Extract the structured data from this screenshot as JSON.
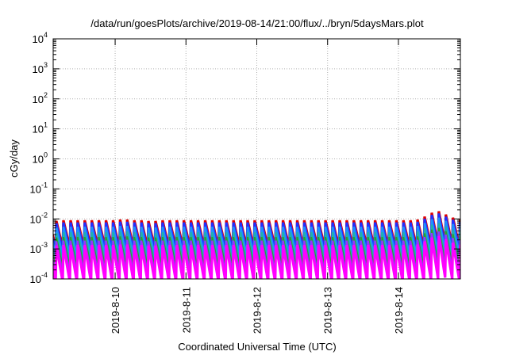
{
  "chart_data": {
    "type": "line",
    "title": "/data/run/goesPlots/archive/2019-08-14/21:00/flux/../bryn/5daysMars.plot",
    "xlabel": "Coordinated Universal Time (UTC)",
    "ylabel": "cGy/day",
    "xlim": [
      "2019-08-09 03:00",
      "2019-08-14 21:00"
    ],
    "ylim": [
      0.0001,
      10000
    ],
    "yscale": "log",
    "grid": true,
    "legend": "none",
    "x_ticks": [
      "2019-8-10",
      "2019-8-11",
      "2019-8-12",
      "2019-8-13",
      "2019-8-14"
    ],
    "y_ticks": [
      {
        "base": "10",
        "exp": "-4",
        "value": 0.0001
      },
      {
        "base": "10",
        "exp": "-3",
        "value": 0.001
      },
      {
        "base": "10",
        "exp": "-2",
        "value": 0.01
      },
      {
        "base": "10",
        "exp": "-1",
        "value": 0.1
      },
      {
        "base": "10",
        "exp": "0",
        "value": 1
      },
      {
        "base": "10",
        "exp": "1",
        "value": 10
      },
      {
        "base": "10",
        "exp": "2",
        "value": 100
      },
      {
        "base": "10",
        "exp": "3",
        "value": 1000
      },
      {
        "base": "10",
        "exp": "4",
        "value": 10000
      }
    ],
    "sawtooth_period_hours": 2.4,
    "series": [
      {
        "color": "#e00000",
        "peak": [
          0.0085,
          0.0085,
          0.009,
          0.009,
          0.009,
          0.009,
          0.009,
          0.009,
          0.009,
          0.009,
          0.0095,
          0.0095,
          0.009,
          0.009,
          0.0085,
          0.0085,
          0.009,
          0.009,
          0.009,
          0.009,
          0.009,
          0.009,
          0.009,
          0.009,
          0.009,
          0.009,
          0.009,
          0.009,
          0.009,
          0.009,
          0.009,
          0.009,
          0.009,
          0.009,
          0.009,
          0.009,
          0.009,
          0.009,
          0.009,
          0.009,
          0.009,
          0.009,
          0.009,
          0.009,
          0.009,
          0.009,
          0.009,
          0.009,
          0.009,
          0.009,
          0.009,
          0.009,
          0.0095,
          0.012,
          0.016,
          0.018,
          0.014,
          0.011,
          0.0095,
          0.009
        ],
        "trough": [
          0.0011,
          0.0011,
          0.0011,
          0.0011,
          0.0011,
          0.0011,
          0.0011,
          0.0011,
          0.0011,
          0.0011,
          0.0011,
          0.0011,
          0.0011,
          0.0011,
          0.0011,
          0.0011,
          0.0011,
          0.0011,
          0.0011,
          0.0011,
          0.0011,
          0.0011,
          0.0011,
          0.0011,
          0.0011,
          0.0011,
          0.0011,
          0.0011,
          0.0011,
          0.0011,
          0.0011,
          0.0011,
          0.0011,
          0.0011,
          0.0011,
          0.0011,
          0.0011,
          0.0011,
          0.0011,
          0.0011,
          0.0011,
          0.0011,
          0.0011,
          0.0011,
          0.0011,
          0.0011,
          0.0011,
          0.0011,
          0.0011,
          0.0011,
          0.0011,
          0.0011,
          0.0011,
          0.0012,
          0.0014,
          0.0015,
          0.0013,
          0.0012,
          0.0011,
          0.0011
        ]
      },
      {
        "color": "#2030ff",
        "peak": [
          0.0072,
          0.0072,
          0.0076,
          0.0076,
          0.0076,
          0.0076,
          0.0076,
          0.0076,
          0.0076,
          0.0076,
          0.008,
          0.008,
          0.0076,
          0.0076,
          0.0072,
          0.0072,
          0.0076,
          0.0076,
          0.0076,
          0.0076,
          0.0076,
          0.0076,
          0.0076,
          0.0076,
          0.0076,
          0.0076,
          0.0076,
          0.0076,
          0.0076,
          0.0076,
          0.0076,
          0.0076,
          0.0076,
          0.0076,
          0.0076,
          0.0076,
          0.0076,
          0.0076,
          0.0076,
          0.0076,
          0.0076,
          0.0076,
          0.0076,
          0.0076,
          0.0076,
          0.0076,
          0.0076,
          0.0076,
          0.0076,
          0.0076,
          0.0076,
          0.0076,
          0.008,
          0.0101,
          0.0135,
          0.0152,
          0.0118,
          0.0093,
          0.008,
          0.0076
        ],
        "trough": [
          0.00085,
          0.00085,
          0.00085,
          0.00085,
          0.00085,
          0.00085,
          0.00085,
          0.00085,
          0.00085,
          0.00085,
          0.00085,
          0.00085,
          0.00085,
          0.00085,
          0.00085,
          0.00085,
          0.00085,
          0.00085,
          0.00085,
          0.00085,
          0.00085,
          0.00085,
          0.00085,
          0.00085,
          0.00085,
          0.00085,
          0.00085,
          0.00085,
          0.00085,
          0.00085,
          0.00085,
          0.00085,
          0.00085,
          0.00085,
          0.00085,
          0.00085,
          0.00085,
          0.00085,
          0.00085,
          0.00085,
          0.00085,
          0.00085,
          0.00085,
          0.00085,
          0.00085,
          0.00085,
          0.00085,
          0.00085,
          0.00085,
          0.00085,
          0.00085,
          0.00085,
          0.00085,
          0.00092,
          0.00108,
          0.00116,
          0.001,
          0.00092,
          0.00085,
          0.00085
        ]
      },
      {
        "color": "#1e90ff",
        "peak": [
          0.0052,
          0.0052,
          0.0055,
          0.0055,
          0.0055,
          0.0055,
          0.0055,
          0.0055,
          0.0055,
          0.0055,
          0.0058,
          0.0058,
          0.0055,
          0.0055,
          0.0052,
          0.0052,
          0.0055,
          0.0055,
          0.0055,
          0.0055,
          0.0055,
          0.0055,
          0.0055,
          0.0055,
          0.0055,
          0.0055,
          0.0055,
          0.0055,
          0.0055,
          0.0055,
          0.0055,
          0.0055,
          0.0055,
          0.0055,
          0.0055,
          0.0055,
          0.0055,
          0.0055,
          0.0055,
          0.0055,
          0.0055,
          0.0055,
          0.0055,
          0.0055,
          0.0055,
          0.0055,
          0.0055,
          0.0055,
          0.0055,
          0.0055,
          0.0055,
          0.0055,
          0.0058,
          0.0073,
          0.0098,
          0.011,
          0.0086,
          0.0067,
          0.0058,
          0.0055
        ],
        "trough": [
          0.0006,
          0.0006,
          0.0006,
          0.0006,
          0.0006,
          0.0006,
          0.0006,
          0.0006,
          0.0006,
          0.0006,
          0.0006,
          0.0006,
          0.0006,
          0.0006,
          0.0006,
          0.0006,
          0.0006,
          0.0006,
          0.0006,
          0.0006,
          0.0006,
          0.0006,
          0.0006,
          0.0006,
          0.0006,
          0.0006,
          0.0006,
          0.0006,
          0.0006,
          0.0006,
          0.0006,
          0.0006,
          0.0006,
          0.0006,
          0.0006,
          0.0006,
          0.0006,
          0.0006,
          0.0006,
          0.0006,
          0.0006,
          0.0006,
          0.0006,
          0.0006,
          0.0006,
          0.0006,
          0.0006,
          0.0006,
          0.0006,
          0.0006,
          0.0006,
          0.0006,
          0.0006,
          0.00065,
          0.00076,
          0.00082,
          0.00071,
          0.00065,
          0.0006,
          0.0006
        ]
      },
      {
        "color": "#20b2aa",
        "peak": [
          0.0034,
          0.0034,
          0.0036,
          0.0036,
          0.0036,
          0.0036,
          0.0036,
          0.0036,
          0.0036,
          0.0036,
          0.0038,
          0.0038,
          0.0036,
          0.0036,
          0.0034,
          0.0034,
          0.0036,
          0.0036,
          0.0036,
          0.0036,
          0.0036,
          0.0036,
          0.0036,
          0.0036,
          0.0036,
          0.0036,
          0.0036,
          0.0036,
          0.0036,
          0.0036,
          0.0036,
          0.0036,
          0.0036,
          0.0036,
          0.0036,
          0.0036,
          0.0036,
          0.0036,
          0.0036,
          0.0036,
          0.0036,
          0.0036,
          0.0036,
          0.0036,
          0.0036,
          0.0036,
          0.0036,
          0.0036,
          0.0036,
          0.0036,
          0.0036,
          0.0036,
          0.0038,
          0.0048,
          0.0064,
          0.0072,
          0.0056,
          0.0044,
          0.0038,
          0.0036
        ],
        "trough": [
          0.00035,
          0.00035,
          0.00035,
          0.00035,
          0.00035,
          0.00035,
          0.00035,
          0.00035,
          0.00035,
          0.00035,
          0.00035,
          0.00035,
          0.00035,
          0.00035,
          0.00035,
          0.00035,
          0.00035,
          0.00035,
          0.00035,
          0.00035,
          0.00035,
          0.00035,
          0.00035,
          0.00035,
          0.00035,
          0.00035,
          0.00035,
          0.00035,
          0.00035,
          0.00035,
          0.00035,
          0.00035,
          0.00035,
          0.00035,
          0.00035,
          0.00035,
          0.00035,
          0.00035,
          0.00035,
          0.00035,
          0.00035,
          0.00035,
          0.00035,
          0.00035,
          0.00035,
          0.00035,
          0.00035,
          0.00035,
          0.00035,
          0.00035,
          0.00035,
          0.00035,
          0.00035,
          0.00038,
          0.00044,
          0.00048,
          0.00041,
          0.00038,
          0.00035,
          0.00035
        ]
      },
      {
        "color": "#2ca02c",
        "peak": [
          0.0024,
          0.0024,
          0.0025,
          0.0025,
          0.0025,
          0.0025,
          0.0025,
          0.0025,
          0.0025,
          0.0025,
          0.0026,
          0.0026,
          0.0025,
          0.0025,
          0.0024,
          0.0024,
          0.0025,
          0.0025,
          0.0025,
          0.0025,
          0.0025,
          0.0025,
          0.0025,
          0.0025,
          0.0025,
          0.0025,
          0.0025,
          0.0025,
          0.0025,
          0.0025,
          0.0025,
          0.0025,
          0.0025,
          0.0025,
          0.0025,
          0.0025,
          0.0025,
          0.0025,
          0.0025,
          0.0025,
          0.0025,
          0.0025,
          0.0025,
          0.0025,
          0.0025,
          0.0025,
          0.0025,
          0.0025,
          0.0025,
          0.0025,
          0.0025,
          0.0025,
          0.0026,
          0.0033,
          0.0044,
          0.005,
          0.0039,
          0.0031,
          0.0026,
          0.0025
        ],
        "trough": [
          0.00024,
          0.00024,
          0.00024,
          0.00024,
          0.00024,
          0.00024,
          0.00024,
          0.00024,
          0.00024,
          0.00024,
          0.00024,
          0.00024,
          0.00024,
          0.00024,
          0.00024,
          0.00024,
          0.00024,
          0.00024,
          0.00024,
          0.00024,
          0.00024,
          0.00024,
          0.00024,
          0.00024,
          0.00024,
          0.00024,
          0.00024,
          0.00024,
          0.00024,
          0.00024,
          0.00024,
          0.00024,
          0.00024,
          0.00024,
          0.00024,
          0.00024,
          0.00024,
          0.00024,
          0.00024,
          0.00024,
          0.00024,
          0.00024,
          0.00024,
          0.00024,
          0.00024,
          0.00024,
          0.00024,
          0.00024,
          0.00024,
          0.00024,
          0.00024,
          0.00024,
          0.00024,
          0.00026,
          0.0003,
          0.00033,
          0.00028,
          0.00026,
          0.00024,
          0.00024
        ]
      },
      {
        "color": "#9b30ff",
        "peak": [
          0.0018,
          0.0018,
          0.0019,
          0.0019,
          0.0019,
          0.0019,
          0.0019,
          0.0019,
          0.0019,
          0.0019,
          0.002,
          0.002,
          0.0019,
          0.0019,
          0.0018,
          0.0018,
          0.0019,
          0.0019,
          0.0019,
          0.0019,
          0.0019,
          0.0019,
          0.0019,
          0.0019,
          0.0019,
          0.0019,
          0.0019,
          0.0019,
          0.0019,
          0.0019,
          0.0019,
          0.0019,
          0.0019,
          0.0019,
          0.0019,
          0.0019,
          0.0019,
          0.0019,
          0.0019,
          0.0019,
          0.0019,
          0.0019,
          0.0019,
          0.0019,
          0.0019,
          0.0019,
          0.0019,
          0.0019,
          0.0019,
          0.0019,
          0.0019,
          0.0019,
          0.002,
          0.0025,
          0.0034,
          0.0038,
          0.003,
          0.0023,
          0.002,
          0.0019
        ],
        "trough": [
          0.00016,
          0.00016,
          0.00016,
          0.00016,
          0.00016,
          0.00016,
          0.00016,
          0.00016,
          0.00016,
          0.00016,
          0.00016,
          0.00016,
          0.00016,
          0.00016,
          0.00016,
          0.00016,
          0.00016,
          0.00016,
          0.00016,
          0.00016,
          0.00016,
          0.00016,
          0.00016,
          0.00016,
          0.00016,
          0.00016,
          0.00016,
          0.00016,
          0.00016,
          0.00016,
          0.00016,
          0.00016,
          0.00016,
          0.00016,
          0.00016,
          0.00016,
          0.00016,
          0.00016,
          0.00016,
          0.00016,
          0.00016,
          0.00016,
          0.00016,
          0.00016,
          0.00016,
          0.00016,
          0.00016,
          0.00016,
          0.00016,
          0.00016,
          0.00016,
          0.00016,
          0.00016,
          0.00017,
          0.0002,
          0.00022,
          0.00019,
          0.00017,
          0.00016,
          0.00016
        ]
      },
      {
        "color": "#ff00ff",
        "peak": [
          0.0013,
          0.0013,
          0.00135,
          0.00135,
          0.00135,
          0.00135,
          0.00135,
          0.00135,
          0.00135,
          0.00135,
          0.0014,
          0.0014,
          0.00135,
          0.00135,
          0.0013,
          0.0013,
          0.00135,
          0.00135,
          0.00135,
          0.00135,
          0.00135,
          0.00135,
          0.00135,
          0.00135,
          0.00135,
          0.00135,
          0.00135,
          0.00135,
          0.00135,
          0.00135,
          0.00135,
          0.00135,
          0.00135,
          0.00135,
          0.00135,
          0.00135,
          0.00135,
          0.00135,
          0.00135,
          0.00135,
          0.00135,
          0.00135,
          0.00135,
          0.00135,
          0.00135,
          0.00135,
          0.00135,
          0.00135,
          0.00135,
          0.00135,
          0.00135,
          0.00135,
          0.0014,
          0.0018,
          0.0024,
          0.0027,
          0.0021,
          0.0016,
          0.0014,
          0.00135
        ],
        "trough": [
          8e-05,
          8e-05,
          8e-05,
          8e-05,
          8e-05,
          8e-05,
          8e-05,
          8e-05,
          8e-05,
          8e-05,
          8e-05,
          8e-05,
          8e-05,
          8e-05,
          8e-05,
          8e-05,
          8e-05,
          8e-05,
          8e-05,
          8e-05,
          8e-05,
          8e-05,
          8e-05,
          8e-05,
          8e-05,
          8e-05,
          8e-05,
          8e-05,
          8e-05,
          8e-05,
          8e-05,
          8e-05,
          8e-05,
          8e-05,
          8e-05,
          8e-05,
          8e-05,
          8e-05,
          8e-05,
          8e-05,
          8e-05,
          8e-05,
          8e-05,
          8e-05,
          8e-05,
          8e-05,
          8e-05,
          8e-05,
          8e-05,
          8e-05,
          8e-05,
          8e-05,
          8e-05,
          9e-05,
          0.0001,
          0.00011,
          0.0001,
          9e-05,
          8e-05,
          8e-05
        ]
      }
    ]
  }
}
